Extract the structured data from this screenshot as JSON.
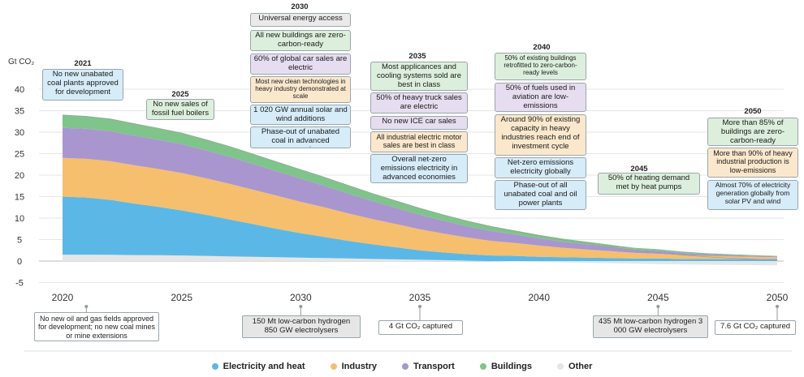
{
  "chart_data": {
    "type": "area",
    "ylabel": "Gt CO₂",
    "ylim": [
      -5,
      40
    ],
    "xlim": [
      2020,
      2050
    ],
    "x_ticks": [
      2020,
      2025,
      2030,
      2035,
      2040,
      2045,
      2050
    ],
    "y_ticks": [
      -5,
      0,
      5,
      10,
      15,
      20,
      25,
      30,
      35,
      40
    ],
    "x": [
      2020,
      2021,
      2022,
      2023,
      2024,
      2025,
      2026,
      2027,
      2028,
      2029,
      2030,
      2031,
      2032,
      2033,
      2034,
      2035,
      2036,
      2037,
      2038,
      2039,
      2040,
      2041,
      2042,
      2043,
      2044,
      2045,
      2046,
      2047,
      2048,
      2049,
      2050
    ],
    "series": [
      {
        "name": "Other",
        "color": "#e6e6e6",
        "values": [
          1.5,
          1.5,
          1.45,
          1.4,
          1.35,
          1.3,
          1.2,
          1.1,
          1.0,
          0.9,
          0.8,
          0.7,
          0.6,
          0.5,
          0.4,
          0.3,
          0.2,
          0.1,
          0.0,
          -0.1,
          -0.2,
          -0.3,
          -0.4,
          -0.5,
          -0.6,
          -0.7,
          -0.8,
          -0.85,
          -0.9,
          -0.95,
          -1.0
        ]
      },
      {
        "name": "Electricity and heat",
        "color": "#5bb8e6",
        "values": [
          13.5,
          13.3,
          12.8,
          12.0,
          11.3,
          10.5,
          9.6,
          8.6,
          7.6,
          6.6,
          5.7,
          4.9,
          4.1,
          3.4,
          2.8,
          2.2,
          1.8,
          1.5,
          1.3,
          1.2,
          1.0,
          0.9,
          0.8,
          0.7,
          0.6,
          0.6,
          0.5,
          0.5,
          0.5,
          0.5,
          0.5
        ]
      },
      {
        "name": "Industry",
        "color": "#f5bf6e",
        "values": [
          9.0,
          9.0,
          9.0,
          8.9,
          8.8,
          8.7,
          8.5,
          8.3,
          8.0,
          7.7,
          7.3,
          6.9,
          6.4,
          5.9,
          5.4,
          4.9,
          4.4,
          3.9,
          3.4,
          3.0,
          2.6,
          2.2,
          1.9,
          1.6,
          1.3,
          1.1,
          0.9,
          0.7,
          0.6,
          0.5,
          0.4
        ]
      },
      {
        "name": "Transport",
        "color": "#a996cf",
        "values": [
          7.0,
          7.0,
          7.0,
          6.9,
          6.8,
          6.7,
          6.5,
          6.3,
          6.0,
          5.7,
          5.4,
          5.0,
          4.6,
          4.2,
          3.8,
          3.4,
          3.0,
          2.6,
          2.3,
          2.0,
          1.7,
          1.4,
          1.2,
          1.0,
          0.8,
          0.7,
          0.5,
          0.4,
          0.3,
          0.25,
          0.2
        ]
      },
      {
        "name": "Buildings",
        "color": "#7fc48a",
        "values": [
          3.0,
          2.9,
          2.85,
          2.8,
          2.7,
          2.6,
          2.5,
          2.4,
          2.3,
          2.2,
          2.1,
          2.0,
          1.9,
          1.75,
          1.6,
          1.5,
          1.35,
          1.2,
          1.05,
          0.9,
          0.8,
          0.7,
          0.6,
          0.5,
          0.4,
          0.35,
          0.3,
          0.25,
          0.2,
          0.15,
          0.1
        ]
      }
    ]
  },
  "legend": [
    {
      "label": "Electricity and heat",
      "color": "#5bb8e6"
    },
    {
      "label": "Industry",
      "color": "#f5bf6e"
    },
    {
      "label": "Transport",
      "color": "#a996cf"
    },
    {
      "label": "Buildings",
      "color": "#7fc48a"
    },
    {
      "label": "Other",
      "color": "#e6e6e6"
    }
  ],
  "milestones": {
    "y2021": {
      "year": "2021",
      "items": [
        "No new unabated coal plants approved for development"
      ]
    },
    "y2025": {
      "year": "2025",
      "items": [
        "No new sales of fossil fuel boilers"
      ]
    },
    "y2030": {
      "year": "2030",
      "items": [
        "Universal energy access",
        "All new buildings are zero-carbon-ready",
        "60% of global car sales are electric",
        "Most new clean technologies in heavy industry demonstrated at scale",
        "1 020 GW annual solar and wind additions",
        "Phase-out of unabated coal in advanced economies"
      ]
    },
    "y2035": {
      "year": "2035",
      "items": [
        "Most applicances and cooling systems sold are best in class",
        "50% of heavy truck sales are electric",
        "No new ICE car sales",
        "All industrial electric motor sales are best in class",
        "Overall net-zero emissions electricity in advanced economies"
      ]
    },
    "y2040": {
      "year": "2040",
      "items": [
        "50% of existing buildings retrofitted to zero-carbon-ready levels",
        "50% of fuels used in aviation are low-emissions",
        "Around 90% of existing capacity in heavy industries reach end of investment cycle",
        "Net-zero emissions electricity globally",
        "Phase-out of all unabated coal and oil power plants"
      ]
    },
    "y2045": {
      "year": "2045",
      "items": [
        "50% of heating demand met by heat pumps"
      ]
    },
    "y2050": {
      "year": "2050",
      "items": [
        "More than 85% of buildings are zero-carbon-ready",
        "More than 90% of heavy industrial production is low-emissions",
        "Almost 70% of electricity generation globally from solar PV and wind"
      ]
    }
  },
  "bottom_notes": {
    "n2021": "No new oil and gas fields approved for development; no new coal mines or mine extensions",
    "n2030": "150 Mt low-carbon hydrogen 850 GW electrolysers",
    "n2035": "4 Gt CO₂ captured",
    "n2045": "435 Mt low-carbon hydrogen 3 000 GW electrolysers",
    "n2050": "7.6 Gt CO₂ captured"
  }
}
